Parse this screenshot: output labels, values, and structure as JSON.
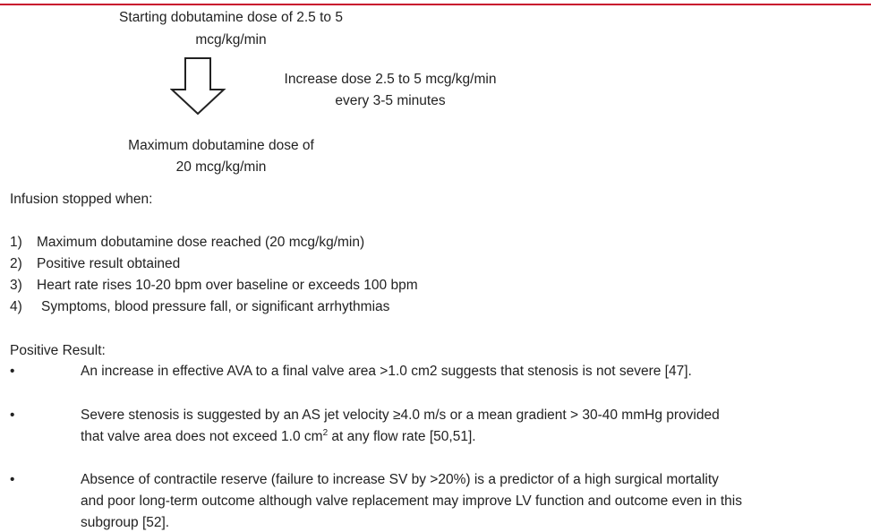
{
  "flow": {
    "start": [
      "Starting dobutamine dose of 2.5 to 5",
      "mcg/kg/min"
    ],
    "step": [
      "Increase dose 2.5 to 5 mcg/kg/min",
      "every 3-5 minutes"
    ],
    "max": [
      "Maximum dobutamine dose of",
      "20 mcg/kg/min"
    ]
  },
  "stop": {
    "heading": "Infusion stopped when:",
    "items": [
      {
        "number": "1)",
        "text": "Maximum dobutamine dose reached (20 mcg/kg/min)"
      },
      {
        "number": "2)",
        "text": "Positive result obtained"
      },
      {
        "number": "3)",
        "text": "Heart rate rises 10-20 bpm over baseline or exceeds 100 bpm"
      },
      {
        "number": "4)",
        "text": "Symptoms, blood pressure fall, or significant arrhythmias"
      }
    ]
  },
  "positive": {
    "heading": "Positive Result:",
    "bullets": [
      {
        "marker": "•",
        "lines": [
          "An increase in effective AVA to a final valve area >1.0 cm2 suggests that stenosis is not severe [47]."
        ]
      },
      {
        "marker": "•",
        "first": "Severe stenosis is suggested by an AS jet velocity ≥4.0 m/s or a mean gradient > 30-40 mmHg provided",
        "second": {
          "text": "that valve area does not exceed 1.0 cm",
          "sup": "2",
          "rest": " at any flow rate [50,51]."
        }
      },
      {
        "marker": "•",
        "lines": [
          "Absence of contractile reserve (failure to increase SV by >20%) is a predictor of a high surgical mortality",
          "and poor long-term outcome although valve replacement may improve LV function and outcome even in this",
          "subgroup [52]."
        ]
      }
    ]
  }
}
